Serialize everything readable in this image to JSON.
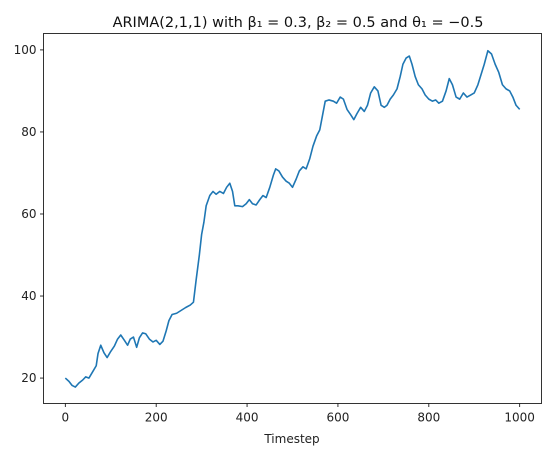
{
  "chart_data": {
    "type": "line",
    "title": "ARIMA(2,1,1) with β₁ = 0.3, β₂ = 0.5 and θ₁ = −0.5",
    "xlabel": "Timestep",
    "ylabel": "",
    "xlim": [
      -48,
      1048
    ],
    "ylim": [
      13.8,
      104.0
    ],
    "x_ticks": [
      0,
      200,
      400,
      600,
      800,
      1000
    ],
    "y_ticks": [
      20,
      40,
      60,
      80,
      100
    ],
    "grid": false,
    "legend": "none",
    "series": [
      {
        "color": "#1f77b4",
        "points": [
          [
            0,
            20.0
          ],
          [
            8,
            19.2
          ],
          [
            15,
            18.2
          ],
          [
            22,
            17.8
          ],
          [
            30,
            18.8
          ],
          [
            38,
            19.5
          ],
          [
            45,
            20.3
          ],
          [
            52,
            20.0
          ],
          [
            60,
            21.5
          ],
          [
            68,
            23.0
          ],
          [
            72,
            26.0
          ],
          [
            78,
            28.0
          ],
          [
            85,
            26.2
          ],
          [
            92,
            25.0
          ],
          [
            100,
            26.5
          ],
          [
            108,
            27.8
          ],
          [
            115,
            29.5
          ],
          [
            122,
            30.5
          ],
          [
            130,
            29.2
          ],
          [
            137,
            28.0
          ],
          [
            143,
            29.5
          ],
          [
            150,
            30.0
          ],
          [
            157,
            27.5
          ],
          [
            163,
            29.8
          ],
          [
            170,
            31.0
          ],
          [
            177,
            30.8
          ],
          [
            185,
            29.5
          ],
          [
            193,
            28.8
          ],
          [
            200,
            29.2
          ],
          [
            208,
            28.2
          ],
          [
            215,
            29.0
          ],
          [
            222,
            31.5
          ],
          [
            228,
            34.0
          ],
          [
            235,
            35.5
          ],
          [
            245,
            35.8
          ],
          [
            255,
            36.5
          ],
          [
            265,
            37.2
          ],
          [
            275,
            37.8
          ],
          [
            282,
            38.5
          ],
          [
            288,
            44.0
          ],
          [
            295,
            50.0
          ],
          [
            300,
            55.0
          ],
          [
            305,
            58.0
          ],
          [
            310,
            62.0
          ],
          [
            318,
            64.5
          ],
          [
            325,
            65.5
          ],
          [
            332,
            64.8
          ],
          [
            340,
            65.5
          ],
          [
            348,
            65.0
          ],
          [
            355,
            66.5
          ],
          [
            362,
            67.5
          ],
          [
            368,
            65.5
          ],
          [
            373,
            62.0
          ],
          [
            380,
            62.0
          ],
          [
            390,
            61.8
          ],
          [
            398,
            62.5
          ],
          [
            405,
            63.5
          ],
          [
            412,
            62.5
          ],
          [
            420,
            62.2
          ],
          [
            428,
            63.5
          ],
          [
            435,
            64.5
          ],
          [
            442,
            64.0
          ],
          [
            450,
            66.5
          ],
          [
            458,
            69.5
          ],
          [
            463,
            71.0
          ],
          [
            470,
            70.5
          ],
          [
            478,
            69.0
          ],
          [
            486,
            68.0
          ],
          [
            493,
            67.5
          ],
          [
            500,
            66.5
          ],
          [
            508,
            68.5
          ],
          [
            515,
            70.5
          ],
          [
            523,
            71.5
          ],
          [
            530,
            71.0
          ],
          [
            538,
            73.5
          ],
          [
            545,
            76.5
          ],
          [
            553,
            79.0
          ],
          [
            560,
            80.5
          ],
          [
            566,
            84.0
          ],
          [
            572,
            87.5
          ],
          [
            580,
            87.8
          ],
          [
            590,
            87.5
          ],
          [
            597,
            87.0
          ],
          [
            605,
            88.5
          ],
          [
            612,
            88.0
          ],
          [
            620,
            85.5
          ],
          [
            628,
            84.2
          ],
          [
            635,
            83.0
          ],
          [
            642,
            84.5
          ],
          [
            650,
            86.0
          ],
          [
            658,
            85.0
          ],
          [
            665,
            86.5
          ],
          [
            672,
            89.5
          ],
          [
            680,
            91.0
          ],
          [
            688,
            90.0
          ],
          [
            695,
            86.5
          ],
          [
            702,
            86.0
          ],
          [
            708,
            86.5
          ],
          [
            715,
            88.0
          ],
          [
            722,
            89.0
          ],
          [
            730,
            90.5
          ],
          [
            737,
            93.5
          ],
          [
            743,
            96.5
          ],
          [
            750,
            98.0
          ],
          [
            757,
            98.5
          ],
          [
            763,
            96.5
          ],
          [
            770,
            93.5
          ],
          [
            777,
            91.5
          ],
          [
            785,
            90.5
          ],
          [
            792,
            89.0
          ],
          [
            800,
            88.0
          ],
          [
            808,
            87.5
          ],
          [
            815,
            87.8
          ],
          [
            822,
            87.0
          ],
          [
            830,
            87.5
          ],
          [
            838,
            90.0
          ],
          [
            845,
            93.0
          ],
          [
            852,
            91.5
          ],
          [
            860,
            88.5
          ],
          [
            868,
            88.0
          ],
          [
            876,
            89.5
          ],
          [
            884,
            88.5
          ],
          [
            892,
            89.0
          ],
          [
            900,
            89.5
          ],
          [
            908,
            91.5
          ],
          [
            915,
            94.0
          ],
          [
            922,
            96.5
          ],
          [
            930,
            99.8
          ],
          [
            938,
            99.0
          ],
          [
            946,
            96.5
          ],
          [
            954,
            94.5
          ],
          [
            962,
            91.5
          ],
          [
            970,
            90.5
          ],
          [
            978,
            90.0
          ],
          [
            985,
            88.5
          ],
          [
            992,
            86.5
          ],
          [
            1000,
            85.5
          ]
        ]
      }
    ]
  }
}
